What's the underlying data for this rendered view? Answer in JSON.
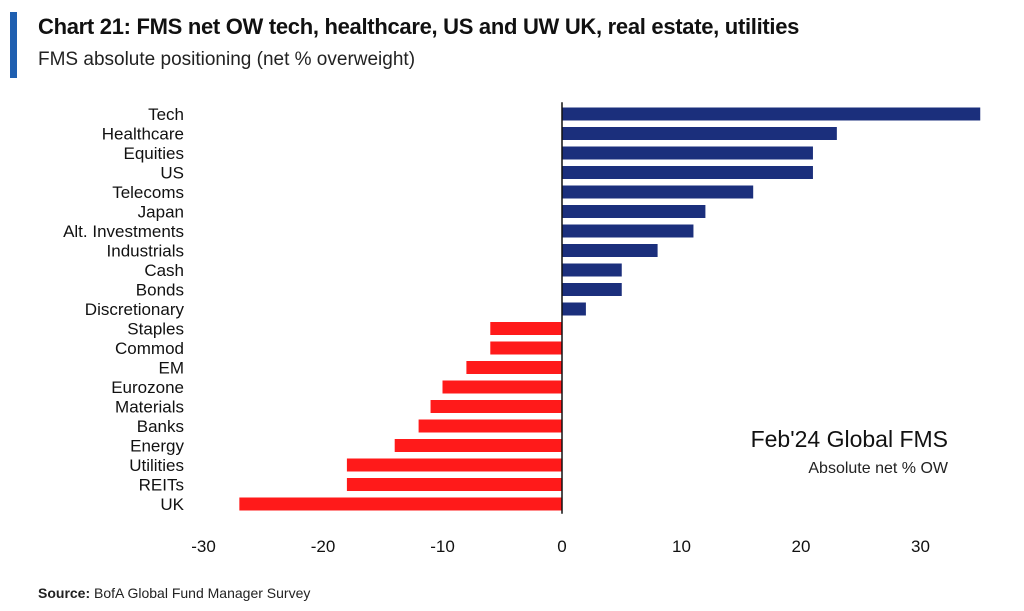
{
  "header": {
    "title": "Chart 21: FMS net OW tech, healthcare, US and UW UK, real estate, utilities",
    "subtitle": "FMS absolute positioning (net % overweight)"
  },
  "source": {
    "label": "Source:",
    "text": "BofA Global Fund Manager Survey"
  },
  "colors": {
    "positive": "#1b2f7c",
    "negative": "#ff1a1a",
    "accent": "#1f5fb0"
  },
  "chart_data": {
    "type": "bar",
    "orientation": "horizontal",
    "categories": [
      "Tech",
      "Healthcare",
      "Equities",
      "US",
      "Telecoms",
      "Japan",
      "Alt. Investments",
      "Industrials",
      "Cash",
      "Bonds",
      "Discretionary",
      "Staples",
      "Commod",
      "EM",
      "Eurozone",
      "Materials",
      "Banks",
      "Energy",
      "Utilities",
      "REITs",
      "UK"
    ],
    "values": [
      35,
      23,
      21,
      21,
      16,
      12,
      11,
      8,
      5,
      5,
      2,
      -6,
      -6,
      -8,
      -10,
      -11,
      -12,
      -14,
      -18,
      -18,
      -27
    ],
    "xlim": [
      -30,
      35
    ],
    "xticks": [
      "-30",
      "-20",
      "-10",
      "0",
      "10",
      "20",
      "30"
    ],
    "xtick_values": [
      -30,
      -20,
      -10,
      0,
      10,
      20,
      30
    ],
    "grid": false,
    "annotation": {
      "title": "Feb'24 Global FMS",
      "subtitle": "Absolute net % OW"
    }
  }
}
